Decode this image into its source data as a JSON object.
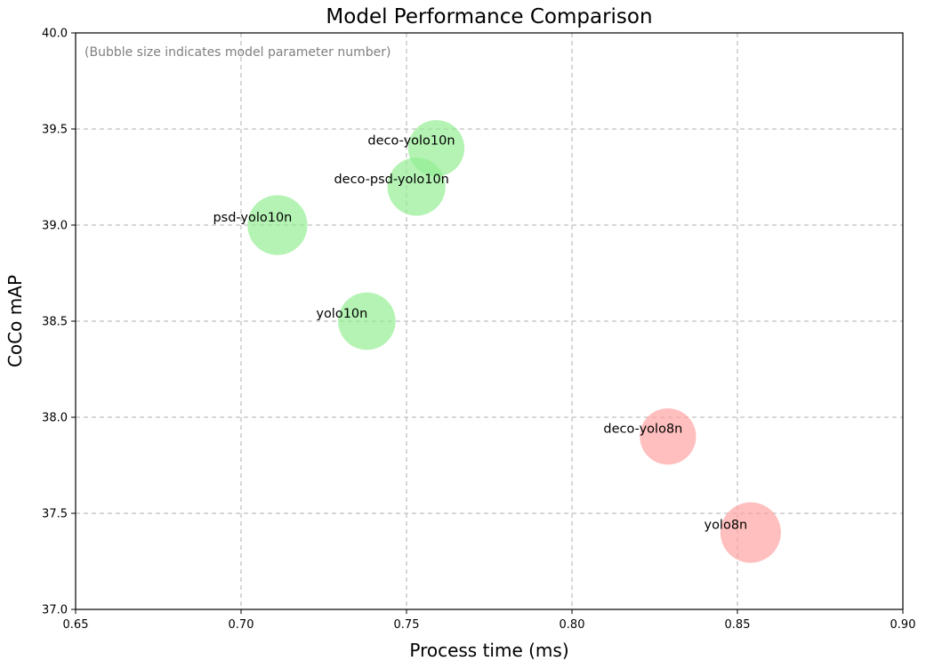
{
  "chart_data": {
    "type": "scatter",
    "title": "Model Performance Comparison",
    "xlabel": "Process time (ms)",
    "ylabel": "CoCo mAP",
    "xlim": [
      0.65,
      0.9
    ],
    "ylim": [
      37.0,
      40.0
    ],
    "xticks": [
      "0.65",
      "0.70",
      "0.75",
      "0.80",
      "0.85",
      "0.90"
    ],
    "yticks": [
      "37.0",
      "37.5",
      "38.0",
      "38.5",
      "39.0",
      "39.5",
      "40.0"
    ],
    "grid": true,
    "annotation": "(Bubble size indicates model parameter number)",
    "colors": {
      "yolo10": "#90ee90",
      "yolo8": "#ffa0a0"
    },
    "points": [
      {
        "label": "deco-yolo10n",
        "x": 0.759,
        "y": 39.4,
        "size": 0.93,
        "group": "yolo10"
      },
      {
        "label": "deco-psd-yolo10n",
        "x": 0.753,
        "y": 39.2,
        "size": 0.96,
        "group": "yolo10"
      },
      {
        "label": "psd-yolo10n",
        "x": 0.711,
        "y": 39.0,
        "size": 0.99,
        "group": "yolo10"
      },
      {
        "label": "yolo10n",
        "x": 0.738,
        "y": 38.5,
        "size": 0.95,
        "group": "yolo10"
      },
      {
        "label": "deco-yolo8n",
        "x": 0.829,
        "y": 37.9,
        "size": 0.93,
        "group": "yolo8"
      },
      {
        "label": "yolo8n",
        "x": 0.854,
        "y": 37.4,
        "size": 1.0,
        "group": "yolo8"
      }
    ]
  }
}
